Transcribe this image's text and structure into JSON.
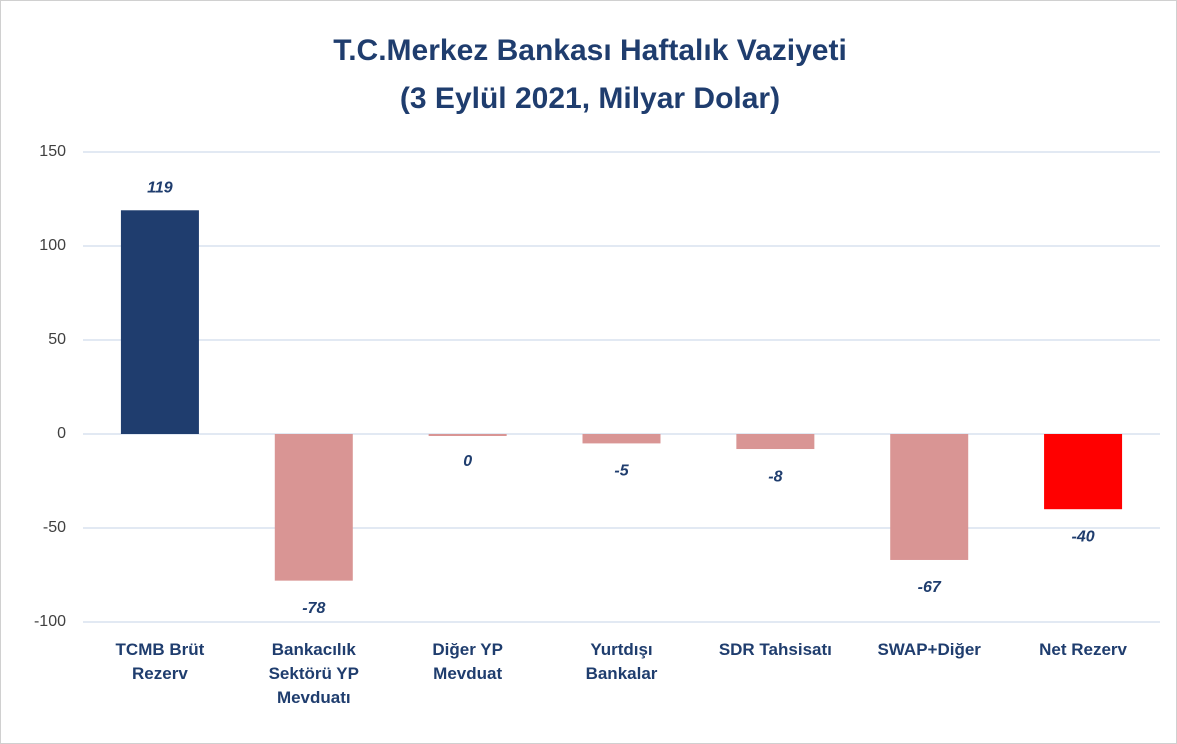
{
  "chart_data": {
    "type": "bar",
    "title": "T.C.Merkez Bankası Haftalık Vaziyeti",
    "subtitle": "(3 Eylül 2021, Milyar Dolar)",
    "categories": [
      "TCMB Brüt Rezerv",
      "Bankacılık Sektörü YP Mevduatı",
      "Diğer YP Mevduat",
      "Yurtdışı Bankalar",
      "SDR Tahsisatı",
      "SWAP+Diğer",
      "Net Rezerv"
    ],
    "values": [
      119,
      -78,
      0,
      -5,
      -8,
      -67,
      -40
    ],
    "colors": [
      "#1f3d6e",
      "#d99594",
      "#d99594",
      "#d99594",
      "#d99594",
      "#d99594",
      "#ff0000"
    ],
    "ylim": [
      -100,
      150
    ],
    "yticks": [
      -100,
      -50,
      0,
      50,
      100,
      150
    ],
    "grid": true
  }
}
